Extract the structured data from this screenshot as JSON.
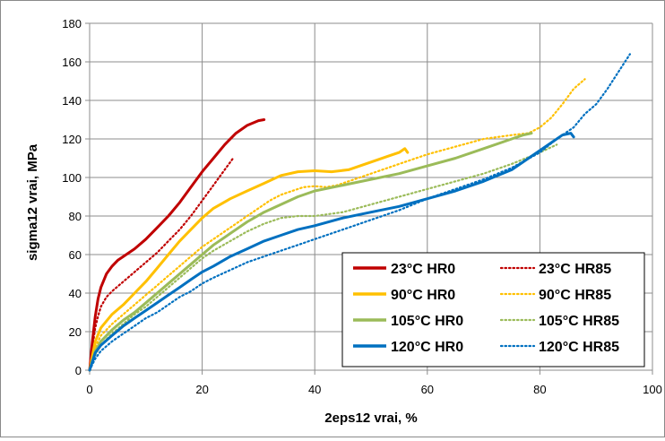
{
  "chart_data": {
    "type": "line",
    "title": "",
    "xlabel": "2eps12 vrai, %",
    "ylabel": "sigma12 vrai, MPa",
    "xlim": [
      0,
      100
    ],
    "ylim": [
      0,
      180
    ],
    "x_ticks": [
      "0",
      "20",
      "40",
      "60",
      "80",
      "100"
    ],
    "y_ticks": [
      "0",
      "20",
      "40",
      "60",
      "80",
      "100",
      "120",
      "140",
      "160",
      "180"
    ],
    "grid": true,
    "legend_position": "bottom-right",
    "series": [
      {
        "name": "23°C HR0",
        "color": "#c00000",
        "style": "solid",
        "x": [
          0,
          0.5,
          1,
          1.5,
          2,
          3,
          4,
          5,
          6,
          8,
          10,
          12,
          14,
          16,
          18,
          20,
          22,
          24,
          26,
          28,
          30,
          31
        ],
        "y": [
          0,
          15,
          28,
          37,
          43,
          50,
          54,
          57,
          59,
          63,
          68,
          74,
          80,
          87,
          95,
          103,
          110,
          117,
          123,
          127,
          129.5,
          130
        ]
      },
      {
        "name": "23°C HR85",
        "color": "#c00000",
        "style": "dotted",
        "x": [
          0,
          0.5,
          1,
          1.5,
          2,
          3,
          4,
          6,
          8,
          10,
          12,
          14,
          16,
          18,
          20,
          22,
          24,
          25.5
        ],
        "y": [
          0,
          12,
          22,
          28,
          33,
          38,
          41,
          46,
          51,
          56,
          61,
          67,
          73,
          80,
          88,
          96,
          104,
          110
        ]
      },
      {
        "name": "90°C HR0",
        "color": "#ffc000",
        "style": "solid",
        "x": [
          0,
          1,
          2,
          4,
          6,
          8,
          10,
          12,
          14,
          16,
          18,
          20,
          22,
          25,
          28,
          31,
          34,
          37,
          40,
          43,
          46,
          50,
          53,
          55,
          56,
          56.5
        ],
        "y": [
          0,
          15,
          22,
          29,
          34,
          40,
          46,
          53,
          60,
          67,
          73,
          79,
          84,
          89,
          93,
          97,
          101,
          103,
          103.5,
          103,
          104,
          108,
          111,
          113,
          115,
          113
        ]
      },
      {
        "name": "90°C HR85",
        "color": "#ffc000",
        "style": "dotted",
        "x": [
          0,
          1,
          2,
          4,
          6,
          8,
          10,
          12,
          14,
          16,
          18,
          20,
          22,
          24,
          26,
          28,
          30,
          32,
          34,
          36,
          38,
          40,
          42,
          44,
          46,
          50,
          55,
          60,
          65,
          70,
          75,
          78,
          80,
          82,
          84,
          86,
          88
        ],
        "y": [
          0,
          12,
          18,
          24,
          29,
          34,
          39,
          44,
          49,
          54,
          59,
          64,
          68,
          72,
          76,
          80,
          84,
          88,
          91,
          93,
          95,
          95.5,
          95,
          96,
          98,
          102,
          107,
          112,
          116,
          120,
          122,
          123,
          126,
          131,
          138,
          146,
          151
        ]
      },
      {
        "name": "105°C HR0",
        "color": "#9bbb59",
        "style": "solid",
        "x": [
          0,
          1,
          2,
          4,
          6,
          8,
          10,
          12,
          14,
          16,
          18,
          20,
          22,
          25,
          28,
          31,
          34,
          37,
          40,
          45,
          50,
          55,
          60,
          65,
          70,
          75,
          77,
          78.5
        ],
        "y": [
          0,
          10,
          15,
          21,
          26,
          30,
          35,
          40,
          45,
          50,
          55,
          60,
          65,
          71,
          77,
          82,
          86,
          90,
          93,
          96,
          99,
          102,
          106,
          110,
          115,
          120,
          122,
          123
        ]
      },
      {
        "name": "105°C HR85",
        "color": "#9bbb59",
        "style": "dotted",
        "x": [
          0,
          1,
          2,
          4,
          6,
          8,
          10,
          12,
          14,
          16,
          18,
          20,
          22,
          25,
          28,
          31,
          34,
          37,
          40,
          45,
          50,
          55,
          60,
          65,
          70,
          75,
          80,
          83
        ],
        "y": [
          0,
          8,
          13,
          19,
          24,
          29,
          33,
          38,
          43,
          48,
          53,
          58,
          62,
          67,
          72,
          76,
          79,
          80,
          80,
          82,
          86,
          90,
          94,
          98,
          102,
          107,
          113,
          117
        ]
      },
      {
        "name": "120°C HR0",
        "color": "#0070c0",
        "style": "solid",
        "x": [
          0,
          1,
          2,
          4,
          6,
          8,
          10,
          12,
          14,
          16,
          18,
          20,
          22,
          25,
          28,
          31,
          34,
          37,
          40,
          45,
          50,
          55,
          60,
          65,
          70,
          75,
          78,
          80,
          82,
          84,
          85.5,
          86
        ],
        "y": [
          0,
          9,
          13,
          18,
          23,
          27,
          31,
          35,
          39,
          43,
          47,
          51,
          54,
          59,
          63,
          67,
          70,
          73,
          75,
          79,
          82,
          85,
          89,
          93,
          98,
          104,
          110,
          114,
          118,
          122,
          123,
          121
        ]
      },
      {
        "name": "120°C HR85",
        "color": "#0070c0",
        "style": "dotted",
        "x": [
          0,
          1,
          2,
          4,
          6,
          8,
          10,
          12,
          14,
          16,
          18,
          20,
          22,
          25,
          28,
          31,
          34,
          37,
          40,
          45,
          50,
          55,
          60,
          65,
          70,
          75,
          80,
          83,
          86,
          88,
          90,
          92,
          94,
          96
        ],
        "y": [
          0,
          6,
          10,
          15,
          19,
          23,
          27,
          30,
          34,
          38,
          41,
          45,
          48,
          52,
          56,
          59,
          62,
          65,
          68,
          73,
          78,
          83,
          89,
          94,
          99,
          105,
          113,
          120,
          126,
          133,
          138,
          146,
          155,
          164
        ]
      }
    ]
  }
}
